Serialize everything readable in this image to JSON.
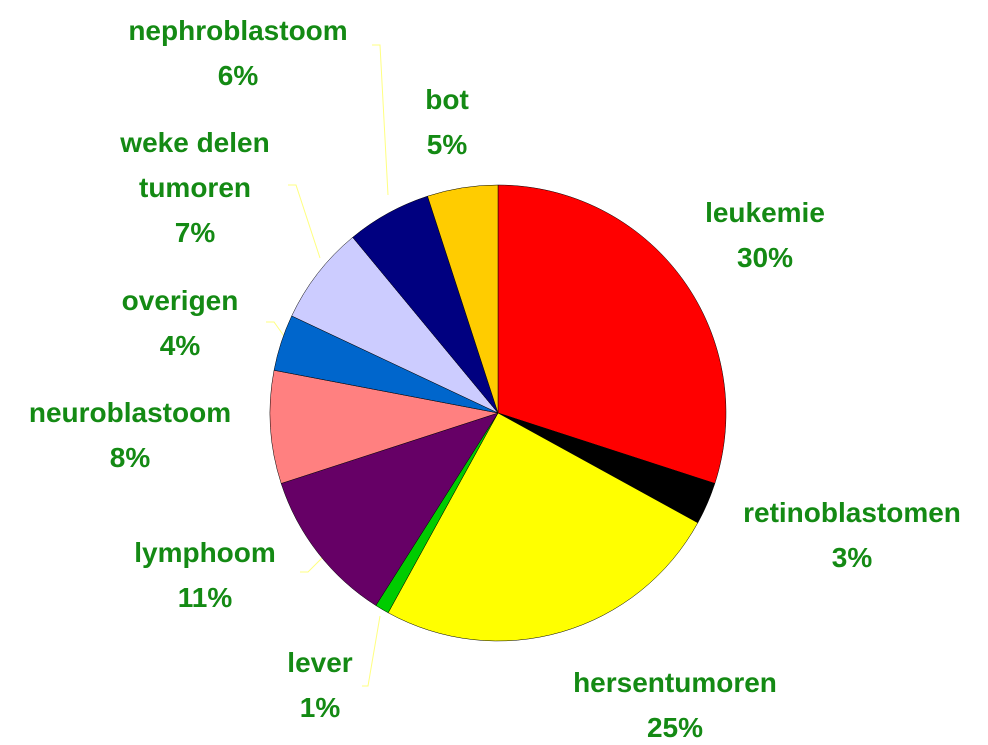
{
  "chart_data": {
    "type": "pie",
    "categories": [
      "leukemie",
      "retinoblastomen",
      "hersentumoren",
      "lever",
      "lymphoom",
      "neuroblastoom",
      "overigen",
      "weke delen tumoren",
      "nephroblastoom",
      "bot"
    ],
    "values": [
      30,
      3,
      25,
      1,
      11,
      8,
      4,
      7,
      6,
      5
    ],
    "value_labels": [
      "30%",
      "3%",
      "25%",
      "1%",
      "11%",
      "8%",
      "4%",
      "7%",
      "6%",
      "5%"
    ],
    "colors": [
      "#ff0000",
      "#000000",
      "#ffff00",
      "#00cc00",
      "#660066",
      "#ff8080",
      "#0066cc",
      "#ccccff",
      "#000080",
      "#ffcc00"
    ]
  }
}
